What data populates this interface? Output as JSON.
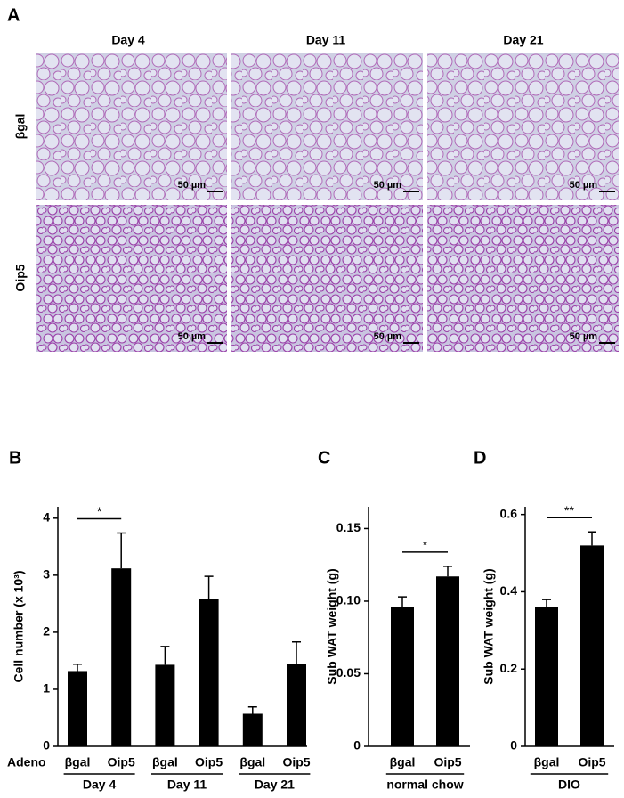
{
  "panel_a": {
    "label": "A",
    "columns": [
      "Day 4",
      "Day 11",
      "Day 21"
    ],
    "rows": [
      "βgal",
      "Oip5"
    ],
    "scale_bar": "50 µm"
  },
  "chart_data": [
    {
      "type": "bar",
      "panel_label": "B",
      "ylabel": "Cell number (x 10³)",
      "axis_title": "Adeno",
      "categories": [
        "βgal",
        "Oip5",
        "βgal",
        "Oip5",
        "βgal",
        "Oip5"
      ],
      "groups": [
        "Day 4",
        "Day 11",
        "Day 21"
      ],
      "series": [
        {
          "color": "#000000",
          "values": [
            1.32,
            3.12,
            1.43,
            2.58,
            0.57,
            1.45
          ],
          "errors": [
            0.12,
            0.62,
            0.32,
            0.4,
            0.12,
            0.38
          ]
        }
      ],
      "ylim": [
        0,
        4.2
      ],
      "yticks": [
        0,
        1,
        2,
        3,
        4
      ],
      "significance": "*"
    },
    {
      "type": "bar",
      "panel_label": "C",
      "ylabel": "Sub WAT weight (g)",
      "categories": [
        "βgal",
        "Oip5"
      ],
      "groups": [
        "normal chow"
      ],
      "series": [
        {
          "color": "#000000",
          "values": [
            0.096,
            0.117
          ],
          "errors": [
            0.007,
            0.007
          ]
        }
      ],
      "ylim": [
        0,
        0.165
      ],
      "yticks": [
        0,
        0.05,
        {
          "value": 0.1,
          "label": "0.10"
        },
        0.15
      ],
      "significance": "*"
    },
    {
      "type": "bar",
      "panel_label": "D",
      "ylabel": "Sub WAT weight (g)",
      "categories": [
        "βgal",
        "Oip5"
      ],
      "groups": [
        "DIO"
      ],
      "series": [
        {
          "color": "#000000",
          "values": [
            0.36,
            0.52
          ],
          "errors": [
            0.02,
            0.035
          ]
        }
      ],
      "ylim": [
        0,
        0.62
      ],
      "yticks": [
        0,
        0.2,
        0.4,
        0.6
      ],
      "significance": "**"
    }
  ]
}
